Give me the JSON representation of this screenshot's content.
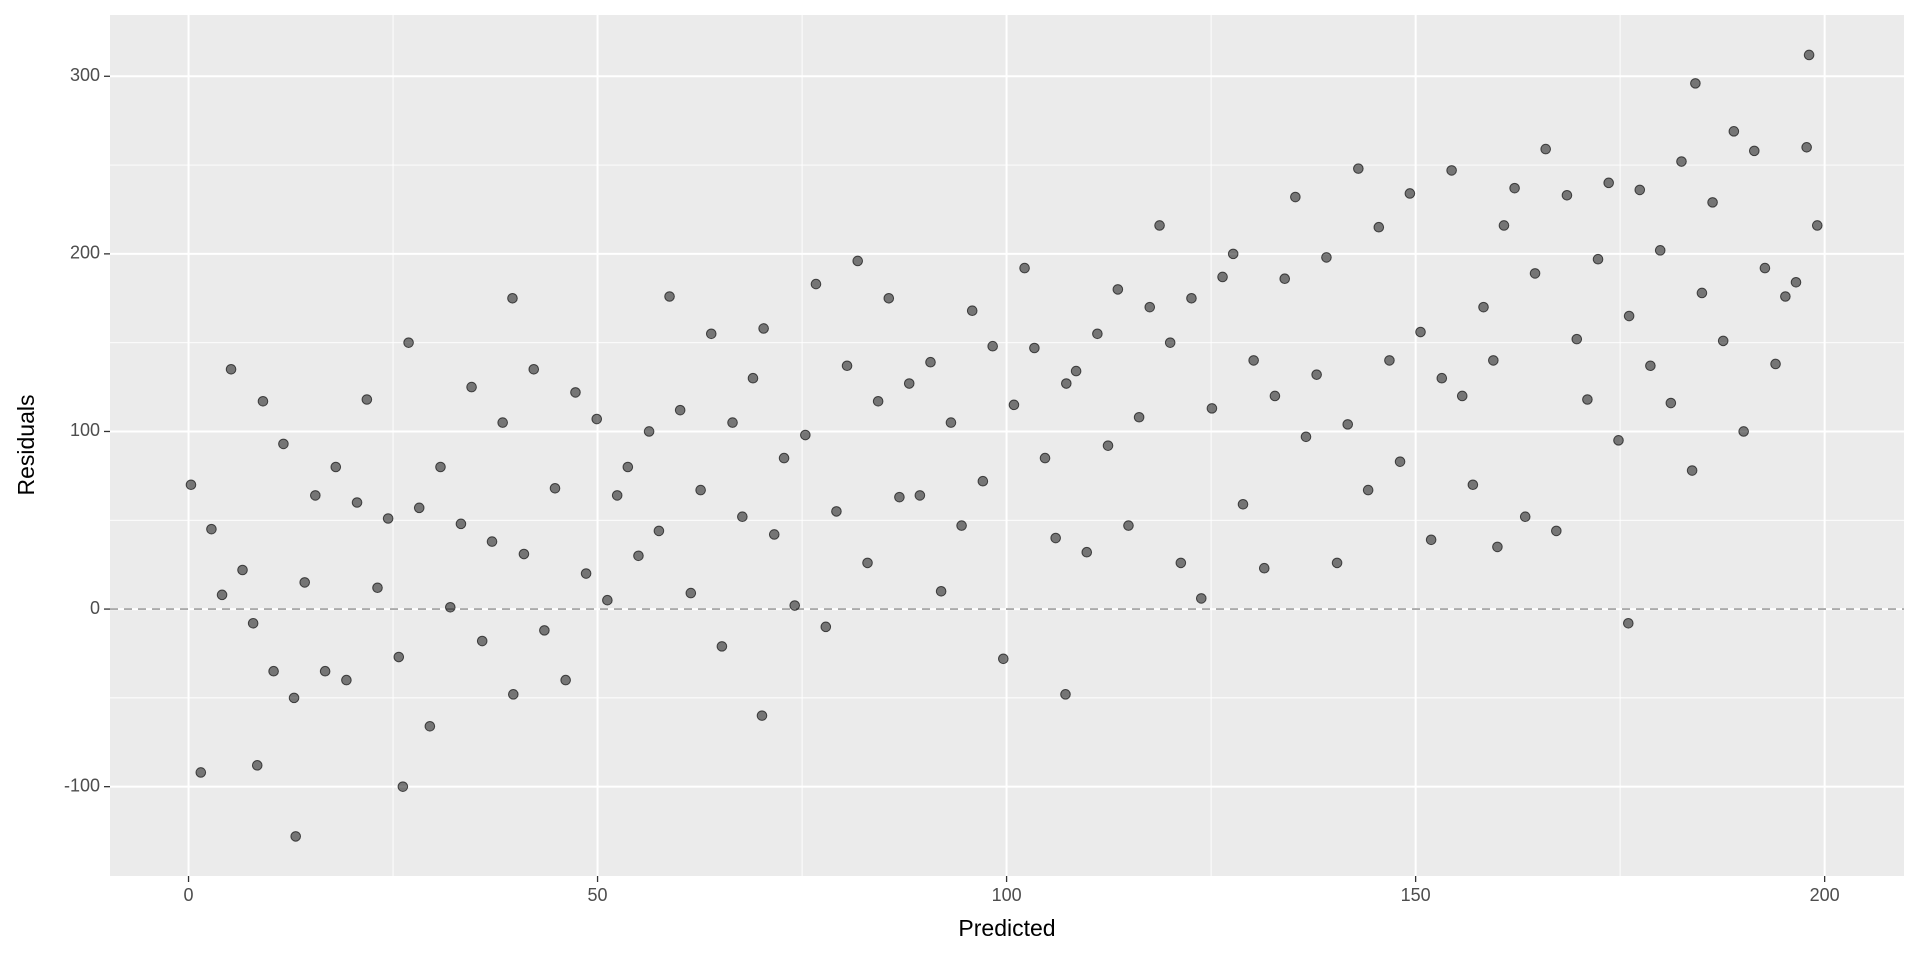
{
  "chart_data": {
    "type": "scatter",
    "x_label": "Predicted",
    "y_label": "Residuals",
    "xlim": [
      -9.6,
      209.7
    ],
    "ylim": [
      -150.3,
      334.5
    ],
    "xticks": [
      0,
      50,
      100,
      150,
      200
    ],
    "yticks": [
      -100,
      0,
      100,
      200,
      300
    ],
    "x_minor_grid": [
      25,
      75,
      125,
      175
    ],
    "y_minor_grid": [
      -50,
      50,
      150,
      250
    ],
    "hline": 0,
    "grid": true,
    "series": [
      {
        "color": "#000000",
        "x": [
          0.3,
          1.5,
          2.8,
          4.1,
          5.2,
          6.6,
          7.9,
          9.1,
          10.4,
          11.6,
          12.9,
          14.2,
          15.5,
          16.7,
          18.0,
          19.3,
          20.6,
          21.8,
          23.1,
          24.4,
          25.7,
          26.9,
          28.2,
          29.5,
          30.8,
          32.0,
          33.3,
          34.6,
          35.9,
          37.1,
          38.4,
          39.7,
          41.0,
          42.2,
          43.5,
          44.8,
          46.1,
          47.3,
          48.6,
          49.9,
          51.2,
          52.4,
          53.7,
          55.0,
          56.3,
          57.5,
          58.8,
          60.1,
          61.4,
          62.6,
          63.9,
          65.2,
          66.5,
          67.7,
          69.0,
          70.3,
          71.6,
          72.8,
          74.1,
          75.4,
          76.7,
          77.9,
          79.2,
          80.5,
          81.8,
          83.0,
          84.3,
          85.6,
          86.9,
          88.1,
          89.4,
          90.7,
          92.0,
          93.2,
          94.5,
          95.8,
          97.1,
          98.3,
          99.6,
          100.9,
          102.2,
          103.4,
          104.7,
          106.0,
          107.3,
          108.5,
          109.8,
          111.1,
          112.4,
          113.6,
          114.9,
          116.2,
          117.5,
          118.7,
          120.0,
          121.3,
          122.6,
          123.8,
          125.1,
          126.4,
          127.7,
          128.9,
          130.2,
          131.5,
          132.8,
          134.0,
          135.3,
          136.6,
          137.9,
          139.1,
          140.4,
          141.7,
          143.0,
          144.2,
          145.5,
          146.8,
          148.1,
          149.3,
          150.6,
          151.9,
          153.2,
          154.4,
          155.7,
          157.0,
          158.3,
          159.5,
          160.8,
          162.1,
          163.4,
          164.6,
          165.9,
          167.2,
          168.5,
          169.7,
          171.0,
          172.3,
          173.6,
          174.8,
          176.1,
          177.4,
          178.7,
          179.9,
          181.2,
          182.5,
          183.8,
          185.0,
          186.3,
          187.6,
          188.9,
          190.1,
          191.4,
          192.7,
          194.0,
          195.2,
          196.5,
          197.8,
          199.1,
          13.1,
          26.2,
          39.6,
          70.1,
          107.2,
          176.0,
          184.2,
          198.1,
          8.4,
          160.0
        ],
        "values": [
          70,
          -92,
          45,
          8,
          135,
          22,
          -8,
          117,
          -35,
          93,
          -50,
          15,
          64,
          -35,
          80,
          -40,
          60,
          118,
          12,
          51,
          -27,
          150,
          57,
          -66,
          80,
          1,
          48,
          125,
          -18,
          38,
          105,
          -48,
          31,
          135,
          -12,
          68,
          -40,
          122,
          20,
          107,
          5,
          64,
          80,
          30,
          100,
          44,
          176,
          112,
          9,
          67,
          155,
          -21,
          105,
          52,
          130,
          158,
          42,
          85,
          2,
          98,
          183,
          -10,
          55,
          137,
          196,
          26,
          117,
          175,
          63,
          127,
          64,
          139,
          10,
          105,
          47,
          168,
          72,
          148,
          -28,
          115,
          192,
          147,
          85,
          40,
          127,
          134,
          32,
          155,
          92,
          180,
          47,
          108,
          170,
          216,
          150,
          26,
          175,
          6,
          113,
          187,
          200,
          59,
          140,
          23,
          120,
          186,
          232,
          97,
          132,
          198,
          26,
          104,
          248,
          67,
          215,
          140,
          83,
          234,
          156,
          39,
          130,
          247,
          120,
          70,
          170,
          140,
          216,
          237,
          52,
          189,
          259,
          44,
          233,
          152,
          118,
          197,
          240,
          95,
          165,
          236,
          137,
          202,
          116,
          252,
          78,
          178,
          229,
          151,
          269,
          100,
          258,
          192,
          138,
          176,
          184,
          260,
          216,
          -128,
          -100,
          175,
          -60,
          -48,
          -8,
          296,
          312,
          -88,
          35
        ]
      }
    ]
  }
}
